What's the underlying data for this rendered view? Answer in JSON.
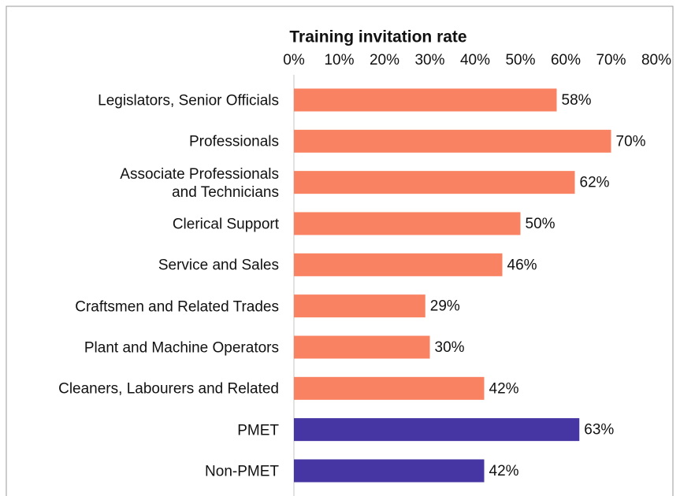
{
  "chart_data": {
    "type": "barh",
    "title": "Training invitation rate",
    "categories": [
      "Legislators, Senior Officials",
      "Professionals",
      "Associate Professionals\nand Technicians",
      "Clerical Support",
      "Service and Sales",
      "Craftsmen and Related Trades",
      "Plant and Machine Operators",
      "Cleaners, Labourers and Related",
      "PMET",
      "Non-PMET"
    ],
    "values": [
      58,
      70,
      62,
      50,
      46,
      29,
      30,
      42,
      63,
      42
    ],
    "value_labels": [
      "58%",
      "70%",
      "62%",
      "50%",
      "46%",
      "29%",
      "30%",
      "42%",
      "63%",
      "42%"
    ],
    "colors": [
      "#f88262",
      "#f88262",
      "#f88262",
      "#f88262",
      "#f88262",
      "#f88262",
      "#f88262",
      "#f88262",
      "#4636a3",
      "#4636a3"
    ],
    "xlim": [
      0,
      80
    ],
    "xticks": [
      {
        "value": 0,
        "label": "0%"
      },
      {
        "value": 10,
        "label": "10%"
      },
      {
        "value": 20,
        "label": "20%"
      },
      {
        "value": 30,
        "label": "30%"
      },
      {
        "value": 40,
        "label": "40%"
      },
      {
        "value": 50,
        "label": "50%"
      },
      {
        "value": 60,
        "label": "60%"
      },
      {
        "value": 70,
        "label": "70%"
      },
      {
        "value": 80,
        "label": "80%"
      }
    ],
    "grid": false
  }
}
